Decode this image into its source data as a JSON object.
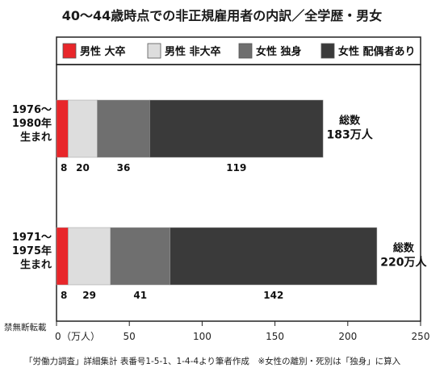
{
  "chart_data": {
    "type": "bar",
    "orientation": "horizontal",
    "stacked": true,
    "title": "40〜44歳時点での非正規雇用者の内訳／全学歴・男女",
    "categories": [
      [
        "1976〜",
        "1980年",
        "生まれ"
      ],
      [
        "1971〜",
        "1975年",
        "生まれ"
      ]
    ],
    "series": [
      {
        "name": "男性 大卒",
        "color": "#e8262a",
        "values": [
          8,
          8
        ]
      },
      {
        "name": "男性 非大卒",
        "color": "#dddddd",
        "values": [
          20,
          29
        ]
      },
      {
        "name": "女性 独身",
        "color": "#6f6f6f",
        "values": [
          36,
          41
        ]
      },
      {
        "name": "女性 配偶者あり",
        "color": "#3a3a3a",
        "values": [
          119,
          142
        ]
      }
    ],
    "totals": [
      {
        "label": "総数",
        "value": "183万人"
      },
      {
        "label": "総数",
        "value": "220万人"
      }
    ],
    "xlim": [
      0,
      250
    ],
    "xticks": [
      0,
      50,
      100,
      150,
      200,
      250
    ],
    "xunit": "（万人）",
    "grid": false,
    "legend": "top"
  },
  "notes": {
    "watermark": "禁無断転載",
    "source": "「労働力調査」詳細集計 表番号1-5-1、1-4-4より筆者作成　※女性の離別・死別は「独身」に算入"
  }
}
